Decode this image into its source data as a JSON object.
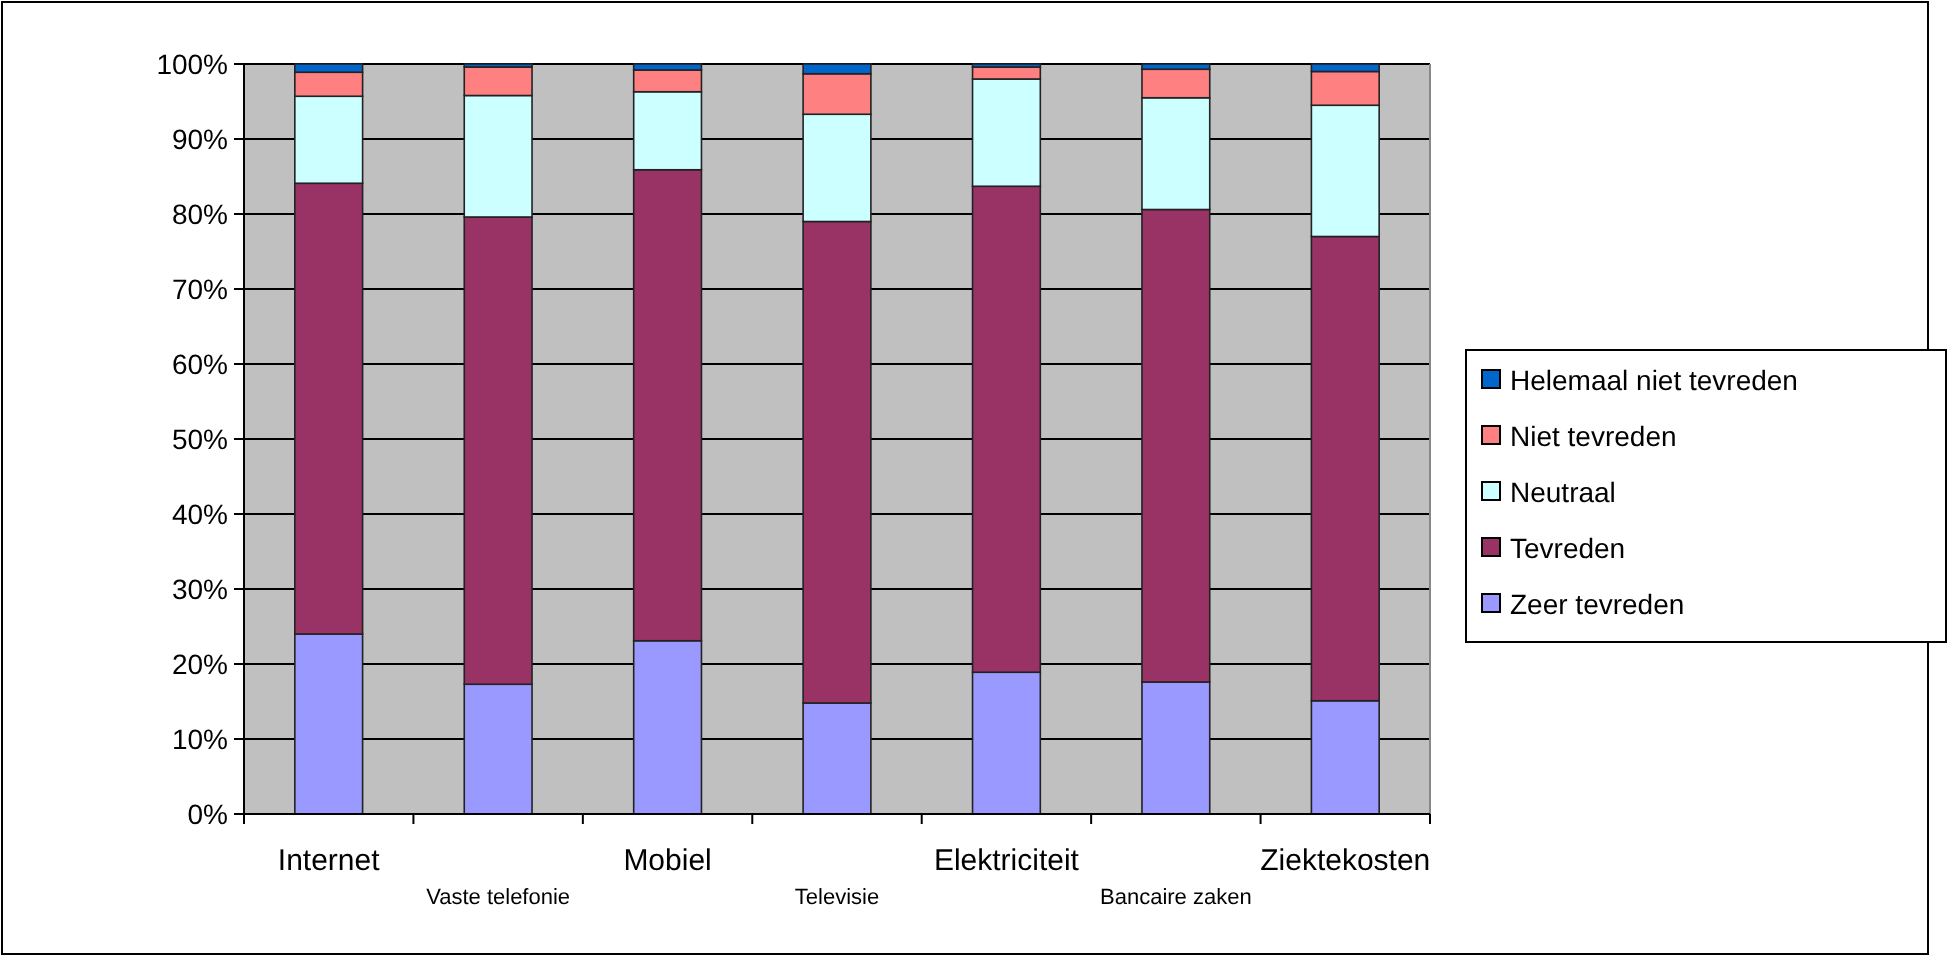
{
  "chart_data": {
    "type": "bar",
    "stacked": true,
    "categories": [
      "Internet",
      "Vaste telefonie",
      "Mobiel",
      "Televisie",
      "Elektriciteit",
      "Bancaire zaken",
      "Ziektekosten"
    ],
    "series": [
      {
        "name": "Zeer tevreden",
        "color": "#9999ff",
        "values": [
          24.0,
          17.3,
          23.1,
          14.8,
          18.9,
          17.6,
          15.1
        ]
      },
      {
        "name": "Tevreden",
        "color": "#993366",
        "values": [
          60.1,
          62.3,
          62.8,
          64.2,
          64.8,
          63.0,
          61.9
        ]
      },
      {
        "name": "Neutraal",
        "color": "#ccffff",
        "values": [
          11.6,
          16.2,
          10.4,
          14.3,
          14.3,
          14.9,
          17.5
        ]
      },
      {
        "name": "Niet tevreden",
        "color": "#ff8080",
        "values": [
          3.2,
          3.8,
          2.9,
          5.4,
          1.6,
          3.8,
          4.5
        ]
      },
      {
        "name": "Helemaal niet tevreden",
        "color": "#0066cc",
        "values": [
          1.1,
          0.4,
          0.8,
          1.3,
          0.4,
          0.7,
          1.0
        ]
      }
    ],
    "ylim": [
      0,
      100
    ],
    "yticks": [
      {
        "value": 0,
        "label": "0%"
      },
      {
        "value": 10,
        "label": "10%"
      },
      {
        "value": 20,
        "label": "20%"
      },
      {
        "value": 30,
        "label": "30%"
      },
      {
        "value": 40,
        "label": "40%"
      },
      {
        "value": 50,
        "label": "50%"
      },
      {
        "value": 60,
        "label": "60%"
      },
      {
        "value": 70,
        "label": "70%"
      },
      {
        "value": 80,
        "label": "80%"
      },
      {
        "value": 90,
        "label": "90%"
      },
      {
        "value": 100,
        "label": "100%"
      }
    ],
    "grid": "y",
    "legend": "right"
  }
}
